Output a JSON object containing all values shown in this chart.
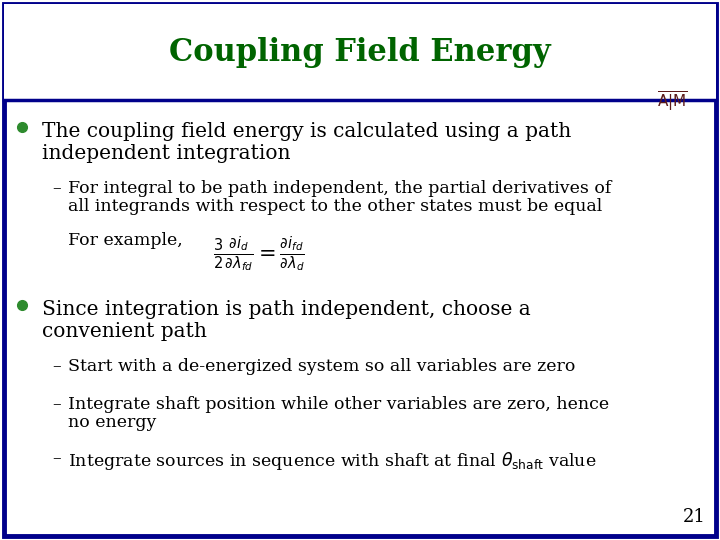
{
  "title": "Coupling Field Energy",
  "title_color": "#006400",
  "title_fontsize": 22,
  "border_color": "#00008B",
  "border_linewidth": 3.5,
  "background_color": "#FFFFFF",
  "logo_color": "#5C1A1A",
  "slide_number": "21",
  "bullet1_line1": "The coupling field energy is calculated using a path",
  "bullet1_line2": "independent integration",
  "sub1_line1": "For integral to be path independent, the partial derivatives of",
  "sub1_line2": "all integrands with respect to the other states must be equal",
  "formula_text": "For example,",
  "bullet2_line1": "Since integration is path independent, choose a",
  "bullet2_line2": "convenient path",
  "sub2a": "Start with a de-energized system so all variables are zero",
  "sub2b_line1": "Integrate shaft position while other variables are zero, hence",
  "sub2b_line2": "no energy",
  "sub2c": "Integrate sources in sequence with shaft at final $\\theta_{\\mathrm{shaft}}$ value",
  "text_color": "#000000",
  "bullet_color": "#2E8B2E",
  "body_fontsize": 14.5,
  "sub_fontsize": 12.5,
  "number_fontsize": 13
}
